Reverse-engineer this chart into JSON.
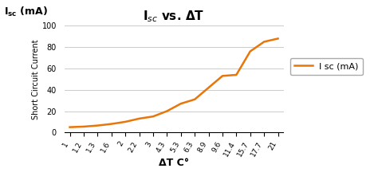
{
  "x_labels": [
    "1",
    "1.2",
    "1.3",
    "1.6",
    "2",
    "2.2",
    "3",
    "4.3",
    "5.3",
    "6.3",
    "8.9",
    "9.6",
    "11.4",
    "15.7",
    "17.7",
    "21"
  ],
  "y_values": [
    5,
    5.5,
    6.5,
    8,
    10,
    13,
    15,
    20,
    27,
    31,
    42,
    53,
    54,
    76,
    85,
    88
  ],
  "line_color": "#E8760A",
  "title": "I$_{sc}$ vs. ΔT",
  "ylabel_rotated": "Short Circuit Current",
  "ylabel_top_plain": "I",
  "ylabel_top_sub": "sc",
  "ylabel_top_rest": " (mA)",
  "xlabel": "ΔT C°",
  "legend_label": "I sc (mA)",
  "ylim": [
    0,
    100
  ],
  "y_ticks": [
    0,
    20,
    40,
    60,
    80,
    100
  ],
  "background_color": "#ffffff",
  "grid_color": "#cccccc"
}
